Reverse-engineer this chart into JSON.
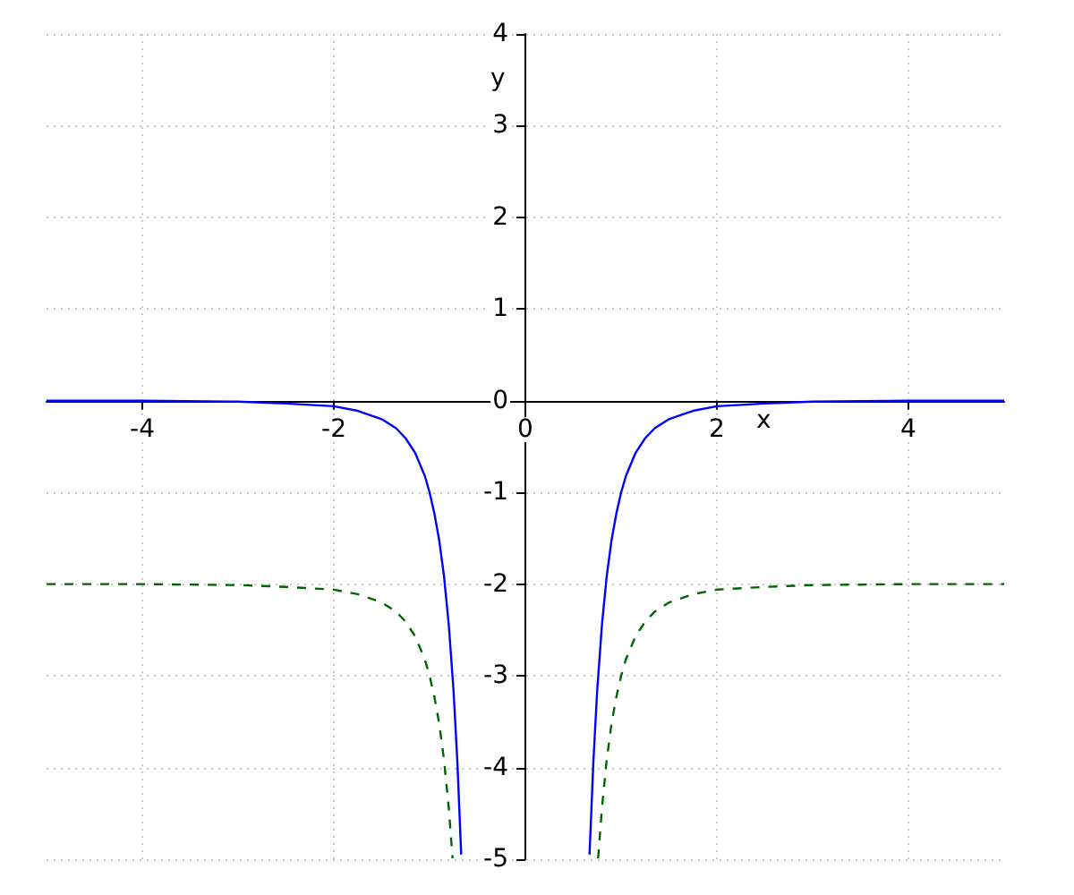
{
  "chart_data": {
    "type": "line",
    "xlabel": "x",
    "ylabel": "y",
    "xlim": [
      -5,
      5
    ],
    "ylim": [
      -5,
      4
    ],
    "xticks": [
      -4,
      -2,
      0,
      2,
      4
    ],
    "yticks": [
      -5,
      -4,
      -3,
      -2,
      -1,
      0,
      1,
      2,
      3,
      4
    ],
    "grid": true,
    "marker": "none",
    "series": [
      {
        "color": "#0000ff",
        "line_style": "solid",
        "x": [
          -5,
          -4,
          -3,
          -2.5,
          -2,
          -1.75,
          -1.5,
          -1.35,
          -1.25,
          -1.15,
          -1.05,
          -1,
          -0.95,
          -0.9,
          -0.85,
          -0.8,
          -0.75,
          -0.71,
          -0.67,
          0,
          0.67,
          0.71,
          0.75,
          0.8,
          0.85,
          0.9,
          0.95,
          1,
          1.05,
          1.15,
          1.25,
          1.35,
          1.5,
          1.75,
          2,
          2.5,
          3,
          4,
          5
        ],
        "values": [
          0,
          0,
          -0.01,
          -0.03,
          -0.06,
          -0.11,
          -0.2,
          -0.3,
          -0.41,
          -0.57,
          -0.82,
          -1,
          -1.23,
          -1.52,
          -1.91,
          -2.44,
          -3.16,
          -3.94,
          -4.95,
          null,
          -4.95,
          -3.94,
          -3.16,
          -2.44,
          -1.91,
          -1.52,
          -1.23,
          -1,
          -0.82,
          -0.57,
          -0.41,
          -0.3,
          -0.2,
          -0.11,
          -0.06,
          -0.03,
          -0.01,
          0,
          0
        ]
      },
      {
        "color": "#006400",
        "line_style": "dashed",
        "x": [
          -5,
          -4,
          -3,
          -2.5,
          -2,
          -1.75,
          -1.5,
          -1.35,
          -1.25,
          -1.15,
          -1.05,
          -1,
          -0.95,
          -0.9,
          -0.85,
          -0.8,
          -0.76,
          0,
          0.76,
          0.8,
          0.85,
          0.9,
          0.95,
          1,
          1.05,
          1.15,
          1.25,
          1.35,
          1.5,
          1.75,
          2,
          2.5,
          3,
          4,
          5
        ],
        "values": [
          -2,
          -2,
          -2.01,
          -2.03,
          -2.06,
          -2.11,
          -2.2,
          -2.3,
          -2.41,
          -2.57,
          -2.82,
          -3,
          -3.23,
          -3.52,
          -3.91,
          -4.44,
          -4.99,
          null,
          -4.99,
          -4.44,
          -3.91,
          -3.52,
          -3.23,
          -3,
          -2.82,
          -2.57,
          -2.41,
          -2.3,
          -2.2,
          -2.11,
          -2.06,
          -2.03,
          -2.01,
          -2,
          -2
        ]
      }
    ]
  }
}
